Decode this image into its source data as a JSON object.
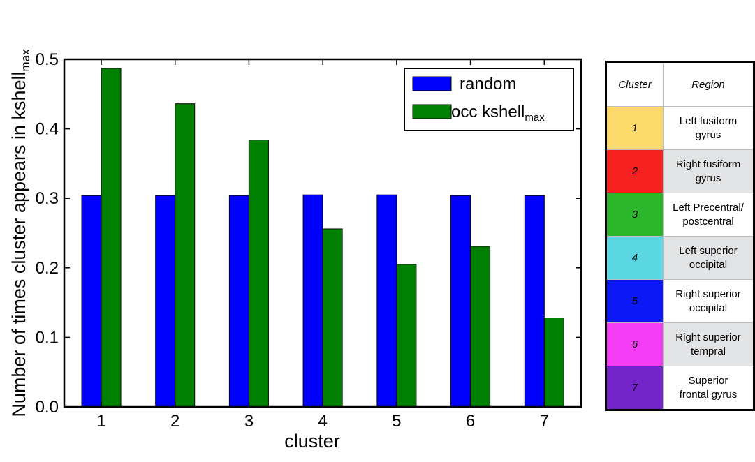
{
  "chart_data": {
    "type": "bar",
    "categories": [
      "1",
      "2",
      "3",
      "4",
      "5",
      "6",
      "7"
    ],
    "series": [
      {
        "name": "random",
        "color": "#0000ff",
        "values": [
          0.304,
          0.304,
          0.304,
          0.305,
          0.305,
          0.304,
          0.304
        ]
      },
      {
        "name": "occ kshell",
        "name_subscript": "max",
        "color": "#008000",
        "values": [
          0.487,
          0.436,
          0.384,
          0.256,
          0.205,
          0.231,
          0.128
        ]
      }
    ],
    "xlabel": "cluster",
    "ylabel": "Number of times cluster appears in kshell",
    "ylabel_subscript": "max",
    "ylim": [
      0,
      0.5
    ],
    "yticks": [
      "0.0",
      "0.1",
      "0.2",
      "0.3",
      "0.4",
      "0.5"
    ],
    "grid": false,
    "legend_position": "top-right"
  },
  "table": {
    "headers": [
      "Cluster",
      "Region"
    ],
    "rows": [
      {
        "cluster": "1",
        "color": "#fdd96c",
        "region_line1": "Left fusiform",
        "region_line2": "gyrus"
      },
      {
        "cluster": "2",
        "color": "#f5211f",
        "region_line1": "Right fusiform",
        "region_line2": "gyrus"
      },
      {
        "cluster": "3",
        "color": "#2cb62c",
        "region_line1": "Left Precentral/",
        "region_line2": "postcentral"
      },
      {
        "cluster": "4",
        "color": "#5ad7e3",
        "region_line1": "Left superior",
        "region_line2": "occipital"
      },
      {
        "cluster": "5",
        "color": "#0c18f6",
        "region_line1": "Right superior",
        "region_line2": "occipital"
      },
      {
        "cluster": "6",
        "color": "#f43cf5",
        "region_line1": "Right superior",
        "region_line2": "tempral"
      },
      {
        "cluster": "7",
        "color": "#7424c8",
        "region_line1": "Superior",
        "region_line2": "frontal gyrus"
      }
    ]
  }
}
